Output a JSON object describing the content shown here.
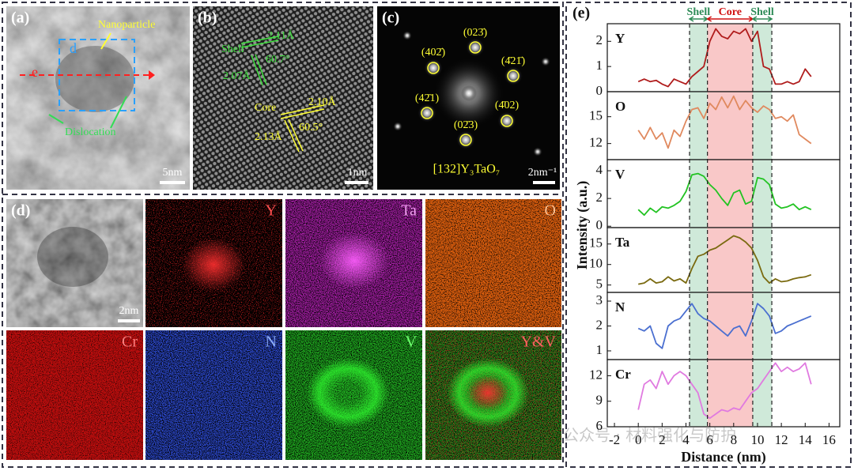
{
  "watermark": "公众号 · 材料强化与防护",
  "panels": {
    "a": {
      "label": "(a)",
      "nanoparticle": "Nanoparticle",
      "d": "d",
      "e": "e",
      "dislocation": "Dislocation",
      "scale": "5nm"
    },
    "b": {
      "label": "(b)",
      "shell": "Shell",
      "shell_d1": "2.11Å",
      "shell_angle": "60.7°",
      "shell_d2": "2.07Å",
      "core": "Core",
      "core_d1": "2.10Å",
      "core_angle": "60.5°",
      "core_d2": "2.13Å",
      "scale": "1nm"
    },
    "c": {
      "label": "(c)",
      "spots": [
        "(023̄)",
        "(402̄)",
        "(4̄21̄)",
        "(42̄1)",
        "(4̄02)",
        "(02̄3)"
      ],
      "zone": "[132]Y₃TaO₇",
      "scale": "2nm⁻¹"
    },
    "d": {
      "label": "(d)",
      "scale": "2nm",
      "maps": [
        "Y",
        "Ta",
        "O",
        "Cr",
        "N",
        "V",
        "Y&V"
      ]
    },
    "e": {
      "label": "(e)"
    }
  },
  "profile_regions": [
    {
      "label": "Shell",
      "from": 4.3,
      "to": 5.8,
      "color": "#cfe9d9",
      "text_color": "#2e8b57"
    },
    {
      "label": "Core",
      "from": 5.8,
      "to": 9.6,
      "color": "#f9c8c8",
      "text_color": "#d01010"
    },
    {
      "label": "Shell",
      "from": 9.6,
      "to": 11.2,
      "color": "#cfe9d9",
      "text_color": "#2e8b57"
    }
  ],
  "chart_data": [
    {
      "type": "line",
      "title": "Y",
      "color": "#b01c1c",
      "xlim": [
        -2.6,
        16.9
      ],
      "ylim": [
        0,
        2.7
      ],
      "yticks": [
        0,
        1,
        2
      ],
      "x": [
        0,
        0.5,
        1,
        1.5,
        2,
        2.5,
        3,
        3.5,
        4,
        4.5,
        5,
        5.5,
        6,
        6.5,
        7,
        7.5,
        8,
        8.5,
        9,
        9.5,
        10,
        10.5,
        11,
        11.5,
        12,
        12.5,
        13,
        13.5,
        14,
        14.5
      ],
      "values": [
        0.4,
        0.5,
        0.4,
        0.45,
        0.3,
        0.2,
        0.5,
        0.4,
        0.3,
        0.6,
        0.8,
        1.0,
        2.0,
        2.5,
        2.2,
        2.1,
        2.4,
        2.3,
        2.5,
        2.0,
        2.4,
        1.0,
        0.9,
        0.3,
        0.3,
        0.4,
        0.3,
        0.4,
        0.9,
        0.6
      ]
    },
    {
      "type": "line",
      "title": "O",
      "color": "#e0895e",
      "xlim": [
        -2.6,
        16.9
      ],
      "ylim": [
        10.2,
        17.8
      ],
      "yticks": [
        12,
        15
      ],
      "x": [
        0,
        0.5,
        1,
        1.5,
        2,
        2.5,
        3,
        3.5,
        4,
        4.5,
        5,
        5.5,
        6,
        6.5,
        7,
        7.5,
        8,
        8.5,
        9,
        9.5,
        10,
        10.5,
        11,
        11.5,
        12,
        12.5,
        13,
        13.5,
        14,
        14.5
      ],
      "values": [
        13.5,
        12.5,
        13.8,
        12.5,
        13.2,
        11.5,
        13.5,
        12.8,
        14.5,
        15.8,
        16.0,
        14.8,
        16.5,
        15.8,
        17.2,
        16.0,
        17.3,
        15.8,
        16.8,
        16.0,
        15.5,
        16.2,
        15.8,
        14.8,
        15.0,
        14.5,
        15.2,
        13.0,
        12.5,
        12.0
      ]
    },
    {
      "type": "line",
      "title": "V",
      "color": "#22c322",
      "xlim": [
        -2.6,
        16.9
      ],
      "ylim": [
        -0.1,
        4.8
      ],
      "yticks": [
        0,
        2,
        4
      ],
      "x": [
        0,
        0.5,
        1,
        1.5,
        2,
        2.5,
        3,
        3.5,
        4,
        4.5,
        5,
        5.5,
        6,
        6.5,
        7,
        7.5,
        8,
        8.5,
        9,
        9.5,
        10,
        10.5,
        11,
        11.5,
        12,
        12.5,
        13,
        13.5,
        14,
        14.5
      ],
      "values": [
        1.2,
        0.8,
        1.3,
        1.0,
        1.4,
        1.3,
        1.5,
        1.8,
        2.5,
        3.7,
        3.8,
        3.6,
        3.0,
        2.6,
        2.0,
        1.5,
        2.4,
        2.6,
        1.6,
        1.8,
        3.5,
        3.4,
        3.0,
        1.6,
        1.3,
        1.4,
        1.6,
        1.2,
        1.4,
        1.2
      ]
    },
    {
      "type": "line",
      "title": "Ta",
      "color": "#7a6a10",
      "xlim": [
        -2.6,
        16.9
      ],
      "ylim": [
        3.2,
        19
      ],
      "yticks": [
        5,
        10,
        15
      ],
      "ylabel": "Intensity (a.u.)",
      "x": [
        0,
        0.5,
        1,
        1.5,
        2,
        2.5,
        3,
        3.5,
        4,
        4.5,
        5,
        5.5,
        6,
        6.5,
        7,
        7.5,
        8,
        8.5,
        9,
        9.5,
        10,
        10.5,
        11,
        11.5,
        12,
        12.5,
        13,
        13.5,
        14,
        14.5
      ],
      "values": [
        5.2,
        5.5,
        6.5,
        5.5,
        5.8,
        7.0,
        6.0,
        6.5,
        5.5,
        9.0,
        12.0,
        12.5,
        13.5,
        14.0,
        15.0,
        16.0,
        17.0,
        16.5,
        15.5,
        14.0,
        11.0,
        7.0,
        5.5,
        6.5,
        5.8,
        6.0,
        6.5,
        6.8,
        7.0,
        7.5
      ]
    },
    {
      "type": "line",
      "title": "N",
      "color": "#4a6fd0",
      "xlim": [
        -2.6,
        16.9
      ],
      "ylim": [
        0.65,
        3.35
      ],
      "yticks": [
        1,
        2,
        3
      ],
      "x": [
        0,
        0.5,
        1,
        1.5,
        2,
        2.5,
        3,
        3.5,
        4,
        4.5,
        5,
        5.5,
        6,
        6.5,
        7,
        7.5,
        8,
        8.5,
        9,
        9.5,
        10,
        10.5,
        11,
        11.5,
        12,
        12.5,
        13,
        13.5,
        14,
        14.5
      ],
      "values": [
        1.9,
        1.8,
        2.0,
        1.3,
        1.1,
        2.0,
        2.2,
        2.3,
        2.6,
        2.9,
        2.5,
        2.3,
        2.2,
        2.0,
        1.8,
        1.6,
        1.9,
        2.0,
        1.6,
        2.2,
        2.9,
        2.7,
        2.4,
        1.7,
        1.8,
        2.0,
        2.1,
        2.2,
        2.3,
        2.4
      ]
    },
    {
      "type": "line",
      "title": "Cr",
      "color": "#e07ae0",
      "xlim": [
        -2.6,
        16.9
      ],
      "ylim": [
        6,
        13.9
      ],
      "yticks": [
        6,
        9,
        12
      ],
      "xticks": [
        -2,
        0,
        2,
        4,
        6,
        8,
        10,
        12,
        14,
        16
      ],
      "xlabel": "Distance (nm)",
      "x": [
        0,
        0.5,
        1,
        1.5,
        2,
        2.5,
        3,
        3.5,
        4,
        4.5,
        5,
        5.5,
        6,
        6.5,
        7,
        7.5,
        8,
        8.5,
        9,
        9.5,
        10,
        10.5,
        11,
        11.5,
        12,
        12.5,
        13,
        13.5,
        14,
        14.5
      ],
      "values": [
        8.0,
        11.0,
        11.5,
        10.5,
        12.5,
        11.0,
        12.0,
        12.5,
        12.0,
        11.0,
        10.0,
        7.5,
        7.0,
        7.5,
        8.0,
        7.8,
        8.2,
        8.0,
        9.0,
        10.0,
        10.5,
        11.5,
        12.5,
        13.5,
        12.5,
        13.0,
        12.5,
        12.8,
        13.5,
        11.0
      ]
    }
  ]
}
